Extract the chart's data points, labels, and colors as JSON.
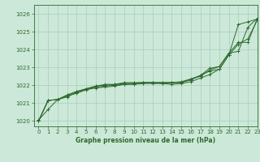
{
  "title": "Graphe pression niveau de la mer (hPa)",
  "background_color": "#cce8d8",
  "grid_color": "#aaccbb",
  "line_color": "#2d6a2d",
  "xlim": [
    -0.5,
    23
  ],
  "ylim": [
    1019.7,
    1026.5
  ],
  "yticks": [
    1020,
    1021,
    1022,
    1023,
    1024,
    1025,
    1026
  ],
  "xticks": [
    0,
    1,
    2,
    3,
    4,
    5,
    6,
    7,
    8,
    9,
    10,
    11,
    12,
    13,
    14,
    15,
    16,
    17,
    18,
    19,
    20,
    21,
    22,
    23
  ],
  "series": [
    [
      1020.05,
      1020.65,
      1021.2,
      1021.4,
      1021.55,
      1021.75,
      1021.85,
      1021.9,
      1021.95,
      1022.05,
      1022.05,
      1022.1,
      1022.1,
      1022.1,
      1022.05,
      1022.1,
      1022.2,
      1022.4,
      1022.6,
      1022.9,
      1023.7,
      1025.4,
      1025.55,
      1025.7
    ],
    [
      1020.0,
      1021.15,
      1021.2,
      1021.35,
      1021.6,
      1021.75,
      1021.9,
      1021.95,
      1022.0,
      1022.05,
      1022.1,
      1022.15,
      1022.15,
      1022.1,
      1022.15,
      1022.15,
      1022.3,
      1022.55,
      1022.8,
      1022.9,
      1023.7,
      1024.3,
      1024.6,
      1025.65
    ],
    [
      1020.0,
      1021.15,
      1021.2,
      1021.45,
      1021.65,
      1021.8,
      1021.95,
      1022.0,
      1022.05,
      1022.15,
      1022.15,
      1022.15,
      1022.15,
      1022.15,
      1022.15,
      1022.15,
      1022.35,
      1022.5,
      1022.85,
      1023.05,
      1023.8,
      1024.4,
      1024.4,
      1025.75
    ],
    [
      1020.0,
      1021.15,
      1021.2,
      1021.45,
      1021.65,
      1021.8,
      1021.95,
      1022.05,
      1022.05,
      1022.1,
      1022.1,
      1022.15,
      1022.15,
      1022.15,
      1022.15,
      1022.2,
      1022.35,
      1022.55,
      1022.95,
      1023.05,
      1023.8,
      1023.9,
      1025.25,
      1025.75
    ]
  ]
}
